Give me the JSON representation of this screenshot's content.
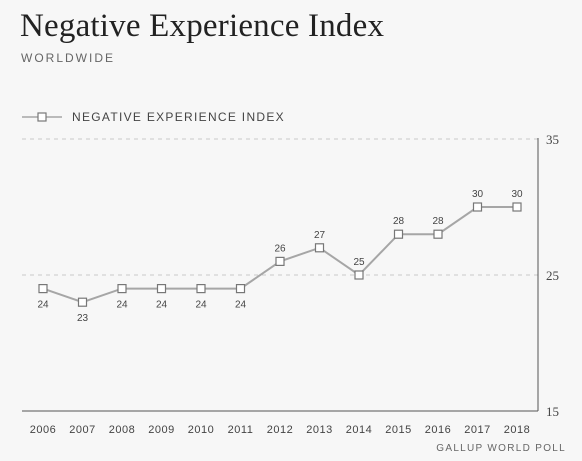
{
  "header": {
    "title": "Negative Experience Index",
    "subtitle": "WORLDWIDE"
  },
  "legend": {
    "label": "NEGATIVE EXPERIENCE INDEX"
  },
  "source": "GALLUP WORLD POLL",
  "chart_data": {
    "type": "line",
    "title": "Negative Experience Index",
    "subtitle": "WORLDWIDE",
    "xlabel": "",
    "ylabel": "",
    "ylim": [
      15,
      35
    ],
    "y_ticks": [
      15,
      25,
      35
    ],
    "grid": "dashed lines at 25 and 35",
    "legend_position": "top-left",
    "x": [
      "2006",
      "2007",
      "2008",
      "2009",
      "2010",
      "2011",
      "2012",
      "2013",
      "2014",
      "2015",
      "2016",
      "2017",
      "2018"
    ],
    "series": [
      {
        "name": "NEGATIVE EXPERIENCE INDEX",
        "values": [
          24,
          23,
          24,
          24,
          24,
          24,
          26,
          27,
          25,
          28,
          28,
          30,
          30
        ],
        "label_position": [
          "below",
          "below",
          "below",
          "below",
          "below",
          "below",
          "above",
          "above",
          "above",
          "above",
          "above",
          "above",
          "above"
        ]
      }
    ],
    "colors": {
      "line": "#a6a6a6",
      "marker_fill": "#ffffff",
      "marker_stroke": "#777777",
      "grid": "#c8c8c8"
    }
  }
}
